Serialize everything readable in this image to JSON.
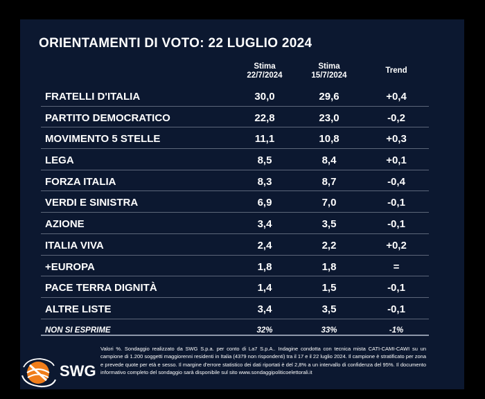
{
  "title": "ORIENTAMENTI DI VOTO: 22 LUGLIO 2024",
  "columns": {
    "col1_line1": "Stima",
    "col1_line2": "22/7/2024",
    "col2_line1": "Stima",
    "col2_line2": "15/7/2024",
    "trend": "Trend"
  },
  "rows": [
    {
      "party": "FRATELLI D'ITALIA",
      "current": "30,0",
      "previous": "29,6",
      "trend": "+0,4"
    },
    {
      "party": "PARTITO DEMOCRATICO",
      "current": "22,8",
      "previous": "23,0",
      "trend": "-0,2"
    },
    {
      "party": "MOVIMENTO 5 STELLE",
      "current": "11,1",
      "previous": "10,8",
      "trend": "+0,3"
    },
    {
      "party": "LEGA",
      "current": "8,5",
      "previous": "8,4",
      "trend": "+0,1"
    },
    {
      "party": "FORZA ITALIA",
      "current": "8,3",
      "previous": "8,7",
      "trend": "-0,4"
    },
    {
      "party": "VERDI E SINISTRA",
      "current": "6,9",
      "previous": "7,0",
      "trend": "-0,1"
    },
    {
      "party": "AZIONE",
      "current": "3,4",
      "previous": "3,5",
      "trend": "-0,1"
    },
    {
      "party": "ITALIA VIVA",
      "current": "2,4",
      "previous": "2,2",
      "trend": "+0,2"
    },
    {
      "party": "+EUROPA",
      "current": "1,8",
      "previous": "1,8",
      "trend": "="
    },
    {
      "party": "PACE TERRA DIGNITÀ",
      "current": "1,4",
      "previous": "1,5",
      "trend": "-0,1"
    },
    {
      "party": "ALTRE LISTE",
      "current": "3,4",
      "previous": "3,5",
      "trend": "-0,1"
    }
  ],
  "non_si_esprime": {
    "party": "NON SI ESPRIME",
    "current": "32%",
    "previous": "33%",
    "trend": "-1%"
  },
  "brand": "SWG",
  "logo_colors": {
    "orange": "#f07d1a",
    "white": "#ffffff"
  },
  "footnote": "Valori %. Sondaggio realizzato da SWG S.p.a. per conto di La7 S.p.A.. Indagine condotta con tecnica mista CATI-CAMI-CAWI su un campione di 1.200 soggetti maggiorenni residenti in Italia (4379 non rispondenti) tra il 17 e il 22 luglio 2024. Il campione è stratificato per zona e prevede quote per età e sesso. Il margine d'errore statistico dei dati riportati è del 2,8% a un intervallo di confidenza del 95%. Il documento informativo completo del sondaggio sarà disponibile sul sito www.sondaggipoliticoelettorali.it"
}
